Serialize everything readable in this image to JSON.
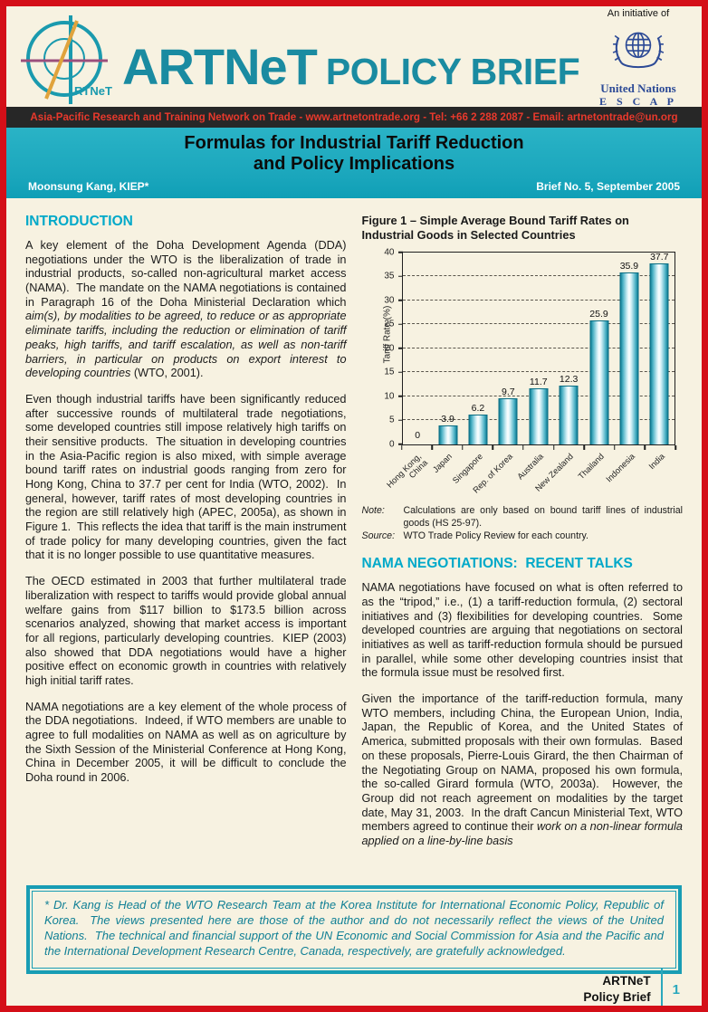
{
  "header": {
    "initiative": "An initiative of",
    "brand": "ARTNeT",
    "brand_suffix": "POLICY BRIEF",
    "logo_text": "RTNeT",
    "un_name": "United Nations",
    "un_escap": "E S C A P",
    "contact_bar": "Asia-Pacific Research and Training Network on Trade - www.artnetontrade.org - Tel: +66 2 288 2087 - Email: artnetontrade@un.org"
  },
  "title_band": {
    "title_line1": "Formulas for Industrial Tariff Reduction",
    "title_line2": "and Policy Implications",
    "author": "Moonsung Kang, KIEP*",
    "brief_no": "Brief No. 5, September 2005"
  },
  "left_column": {
    "heading": "INTRODUCTION",
    "para1_normal": "A key element of the Doha Development Agenda (DDA) negotiations under the WTO is the liberalization of trade in industrial products, so-called non-agricultural market access (NAMA).  The mandate on the NAMA negotiations is contained in Paragraph 16 of the Doha Ministerial Declaration which ",
    "para1_italic": "aim(s), by modalities to be agreed, to reduce or as appropriate eliminate tariffs, including the reduction or elimination of tariff peaks, high tariffs, and tariff escalation, as well as non-tariff barriers, in particular on products on export interest to developing countries",
    "para1_end": " (WTO, 2001).",
    "para2": "Even though industrial tariffs have been significantly reduced after successive rounds of multilateral trade negotiations, some developed countries still impose relatively high tariffs on their sensitive products.  The situation in developing countries in the Asia-Pacific region is also mixed, with simple average bound tariff rates on industrial goods ranging from zero for Hong Kong, China to 37.7 per cent for India (WTO, 2002).  In general, however, tariff rates of most developing countries in the region are still relatively high (APEC, 2005a), as shown in Figure 1.  This reflects the idea that tariff is the main instrument of trade policy for many developing countries, given the fact that it is no longer possible to use quantitative measures.",
    "para3": "The OECD estimated in 2003 that further multilateral trade liberalization with respect to tariffs would provide global annual welfare gains from $117 billion to $173.5 billion across scenarios analyzed, showing that market access is important for all regions, particularly developing countries.  KIEP (2003) also showed that DDA negotiations would have a higher positive effect on economic growth in countries with relatively high initial tariff rates.",
    "para4": "NAMA negotiations are a key element of the whole process of the DDA negotiations.  Indeed, if WTO members are unable to agree to full modalities on NAMA as well as on agriculture by the Sixth Session of the Ministerial Conference at Hong Kong, China in December 2005, it will be difficult to conclude the Doha round in 2006."
  },
  "figure": {
    "title": "Figure 1 – Simple Average Bound Tariff Rates on Industrial Goods in Selected Countries",
    "note_label": "Note:",
    "note_text": "Calculations are only based on bound tariff lines of industrial goods (HS 25-97).",
    "source_label": "Source:",
    "source_text": "WTO Trade Policy Review for each country."
  },
  "chart_data": {
    "type": "bar",
    "title": "Figure 1 – Simple Average Bound Tariff Rates on Industrial Goods in Selected Countries",
    "categories": [
      "Hong Kong, China",
      "Japan",
      "Singapore",
      "Rep. of Korea",
      "Australia",
      "New Zealand",
      "Thailand",
      "Indonesia",
      "India"
    ],
    "values": [
      0,
      3.9,
      6.2,
      9.7,
      11.7,
      12.3,
      25.9,
      35.9,
      37.7
    ],
    "xlabel": "",
    "ylabel": "Tariff Rate (%)",
    "ylim": [
      0,
      40
    ],
    "ytick_step": 5,
    "grid": "horizontal-dashed",
    "legend": "none",
    "bar_edge_color": "#117e95",
    "bar_fill_light": "#ffffff"
  },
  "right_column": {
    "heading": "NAMA NEGOTIATIONS:  RECENT TALKS",
    "para1": "NAMA negotiations have focused on what is often referred to as the “tripod,” i.e., (1) a tariff-reduction formula, (2) sectoral initiatives and (3) flexibilities for developing countries.  Some developed countries are arguing that negotiations on sectoral initiatives as well as tariff-reduction formula should be pursued in parallel, while some other developing countries insist that the formula issue must be resolved first.",
    "para2_normal": "Given the importance of the tariff-reduction formula, many WTO members, including China, the European Union, India, Japan, the Republic of Korea, and the United States of America, submitted proposals with their own formulas.  Based on these proposals, Pierre-Louis Girard, the then Chairman of the Negotiating Group on NAMA, proposed his own formula, the so-called Girard formula (WTO, 2003a).  However, the Group did not reach agreement on modalities by the target date, May 31, 2003.  In the draft Cancun Ministerial Text, WTO members agreed to continue their ",
    "para2_italic": "work on a non-linear formula applied on a line-by-line basis"
  },
  "footnote": {
    "text": "* Dr. Kang is Head of the WTO Research Team at the Korea Institute for International Economic Policy, Republic of Korea.  The views presented here are those of the author and do not necessarily reflect the views of the United Nations.  The technical and financial support of the UN Economic and Social Commission for Asia and the Pacific and the International Development Research Centre, Canada, respectively, are gratefully acknowledged."
  },
  "footer": {
    "brand_line1": "ARTNeT",
    "brand_line2": "Policy Brief",
    "page_number": "1"
  }
}
